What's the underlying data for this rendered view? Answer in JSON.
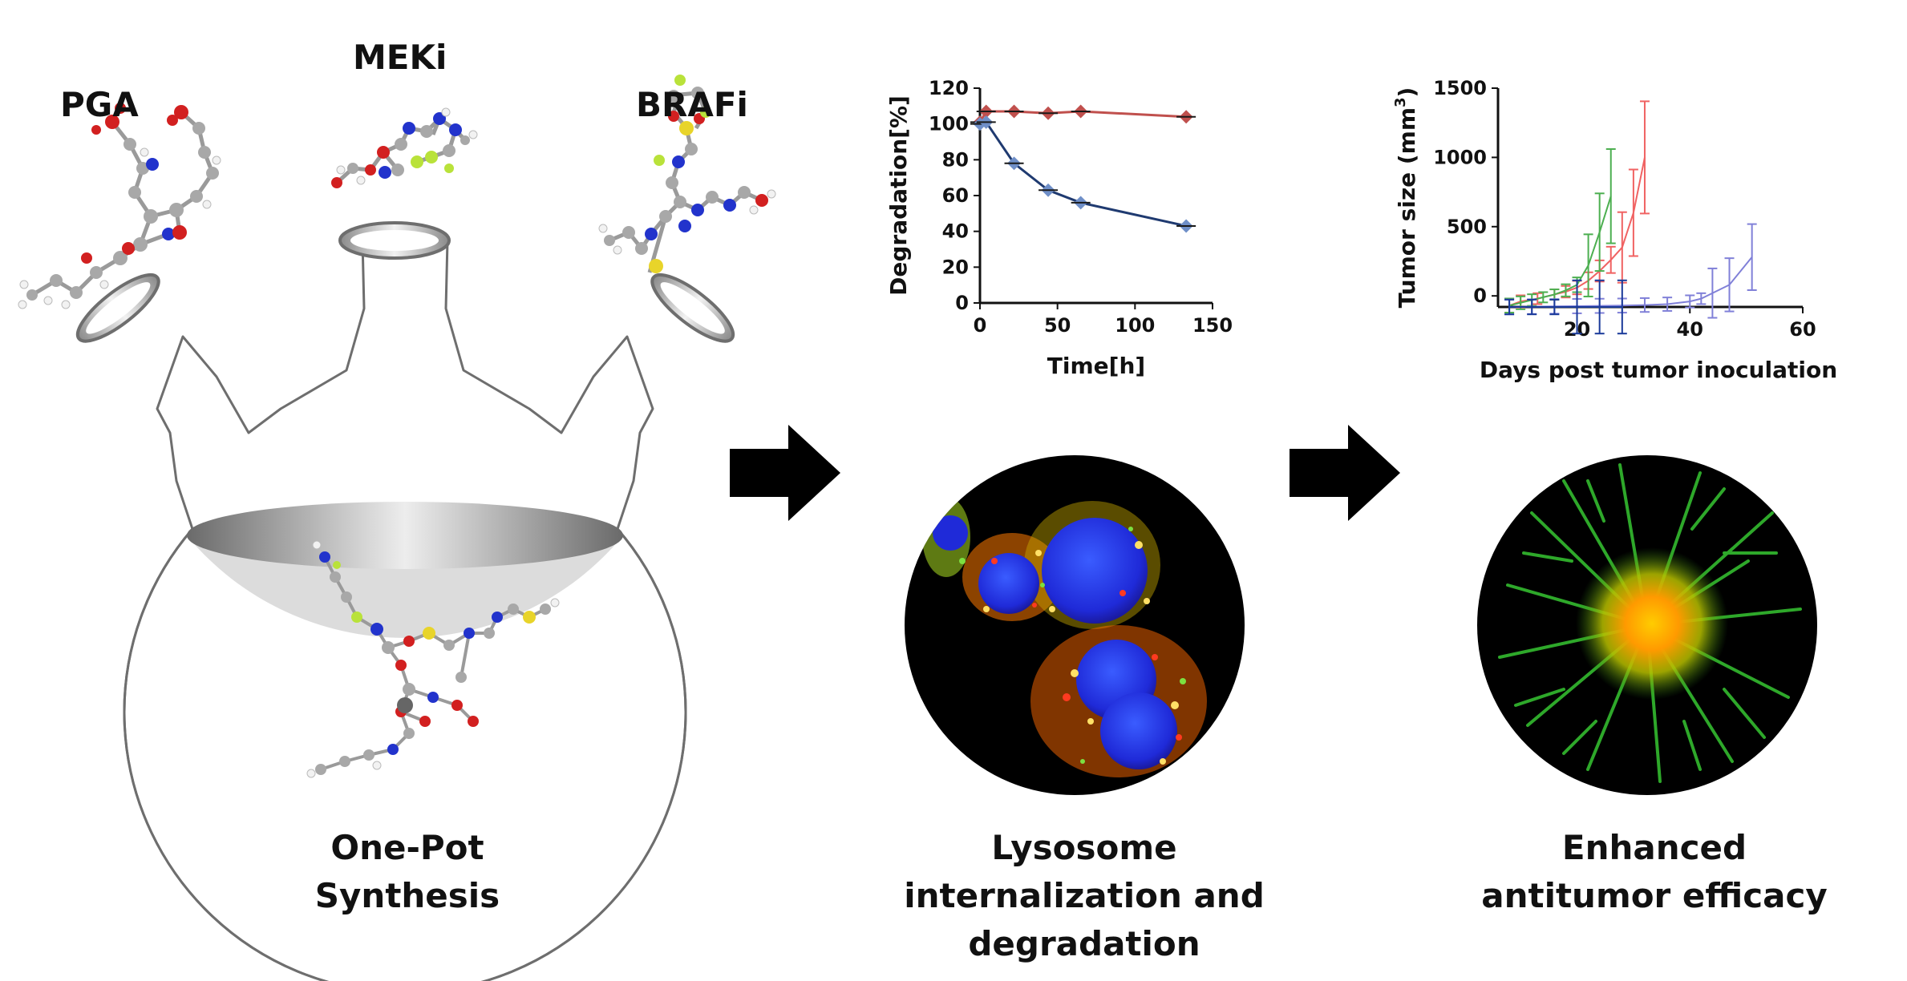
{
  "labels": {
    "pga": "PGA",
    "meki": "MEKi",
    "brafi": "BRAFi"
  },
  "captions": {
    "synthesis_line1": "One-Pot",
    "synthesis_line2": "Synthesis",
    "lysosome_line1": "Lysosome",
    "lysosome_line2": "internalization and",
    "lysosome_line3": "degradation",
    "antitumor_line1": "Enhanced",
    "antitumor_line2": "antitumor efficacy"
  },
  "colors": {
    "arrow": "#000000",
    "flask_outline": "#6e6e6e",
    "flask_fill": "#dcdcdc",
    "atom_carbon": "#a8a8a8",
    "atom_oxygen": "#d22020",
    "atom_nitrogen": "#2233cc",
    "atom_hydrogen": "#f2f2f2",
    "atom_fluorine": "#b9e23a",
    "atom_sulfur": "#e8d42a"
  },
  "chart_data": [
    {
      "type": "line",
      "xlabel": "Time[h]",
      "ylabel": "Degradation[%]",
      "xlim": [
        0,
        150
      ],
      "ylim": [
        0,
        120
      ],
      "xticks": [
        "0",
        "50",
        "100",
        "150"
      ],
      "yticks": [
        "0",
        "20",
        "40",
        "60",
        "80",
        "100",
        "120"
      ],
      "series": [
        {
          "color": "#c0504d",
          "x": [
            0,
            4,
            22,
            44,
            65,
            133
          ],
          "y": [
            101,
            107,
            107,
            106,
            107,
            104
          ]
        },
        {
          "color": "#1f3a70",
          "x": [
            0,
            4,
            22,
            44,
            65,
            133
          ],
          "y": [
            100,
            101,
            78,
            63,
            56,
            43
          ]
        }
      ]
    },
    {
      "type": "line",
      "xlabel": "Days post tumor inoculation",
      "ylabel": "Tumor size (mm3)",
      "ylabel_main": "Tumor size (mm",
      "ylabel_sup": "3",
      "ylabel_end": ")",
      "xlim": [
        6,
        60
      ],
      "ylim": [
        -80,
        1500
      ],
      "xticks": [
        "20",
        "40",
        "60"
      ],
      "yticks": [
        "0",
        "500",
        "1000",
        "1500"
      ],
      "series": [
        {
          "color": "#f06262",
          "x": [
            8,
            10,
            13,
            16,
            18,
            20,
            22,
            24,
            26,
            28,
            30,
            32
          ],
          "y": [
            -70,
            -40,
            -20,
            10,
            30,
            60,
            110,
            180,
            260,
            350,
            600,
            1000
          ]
        },
        {
          "color": "#4caf50",
          "x": [
            8,
            10,
            12,
            14,
            16,
            18,
            20,
            22,
            24,
            26
          ],
          "y": [
            -70,
            -50,
            -30,
            -10,
            10,
            40,
            80,
            220,
            460,
            720
          ]
        },
        {
          "color": "#8080d8",
          "x": [
            8,
            12,
            16,
            20,
            24,
            28,
            32,
            36,
            40,
            42,
            44,
            47,
            51
          ],
          "y": [
            -80,
            -78,
            -76,
            -74,
            -72,
            -70,
            -66,
            -60,
            -40,
            -20,
            20,
            80,
            280
          ]
        },
        {
          "color": "#1a3a9a",
          "x": [
            8,
            12,
            16,
            20,
            24,
            28
          ],
          "y": [
            -80,
            -80,
            -80,
            -80,
            -80,
            -80
          ]
        }
      ]
    }
  ]
}
